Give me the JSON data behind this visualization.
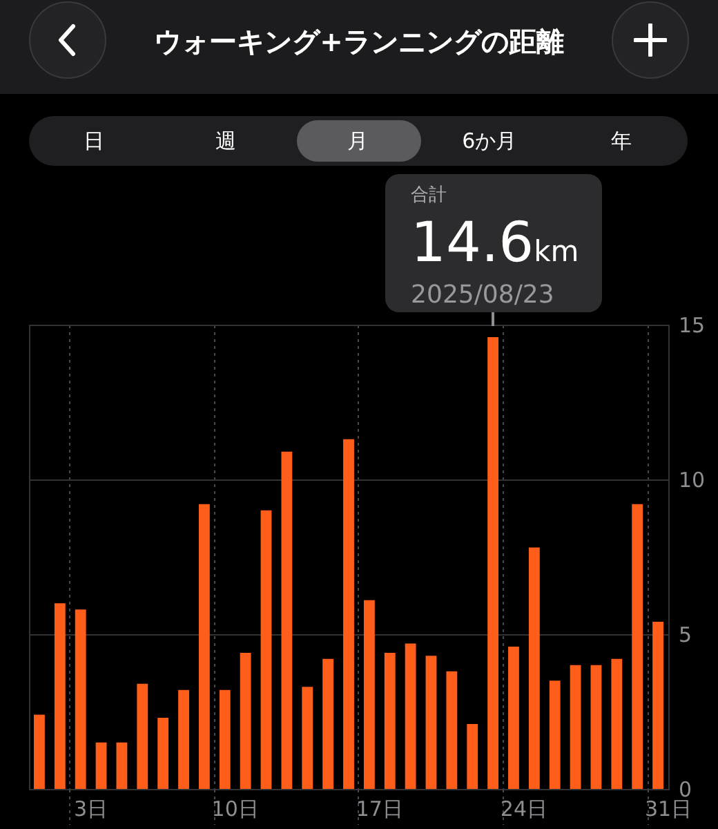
{
  "chart_data": {
    "type": "bar",
    "title": "ウォーキング+ランニングの距離",
    "categories": [
      null,
      null,
      "3日",
      null,
      null,
      null,
      null,
      null,
      null,
      "10日",
      null,
      null,
      null,
      null,
      null,
      null,
      "17日",
      null,
      null,
      null,
      null,
      null,
      null,
      "24日",
      null,
      null,
      null,
      null,
      null,
      null,
      "31日"
    ],
    "values": [
      2.4,
      6.0,
      5.8,
      1.5,
      1.5,
      3.4,
      2.3,
      3.2,
      9.2,
      3.2,
      4.4,
      9.0,
      10.9,
      3.3,
      4.2,
      11.3,
      6.1,
      4.4,
      4.7,
      4.3,
      3.8,
      2.1,
      14.6,
      4.6,
      7.8,
      3.5,
      4.0,
      4.0,
      4.2,
      9.2,
      5.4
    ],
    "color": "#ff5e1a",
    "ylim": [
      0,
      15
    ],
    "yticks": [
      0,
      5,
      10,
      15
    ],
    "grid": true,
    "annotations": [
      "日",
      "週",
      "月",
      "6か月",
      "年",
      "合計",
      "14.6km",
      "2025/08/23"
    ]
  }
}
